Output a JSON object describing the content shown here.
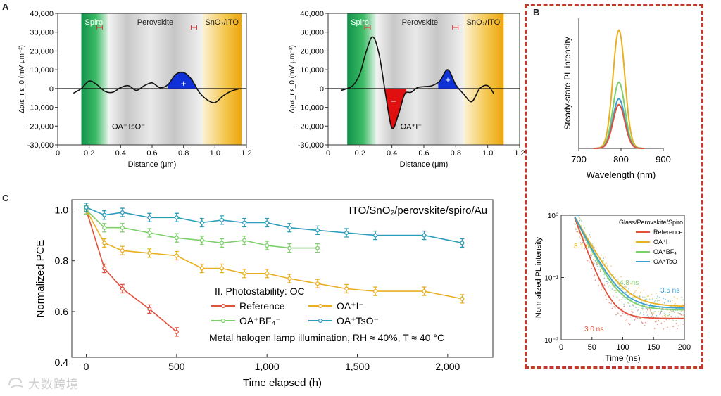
{
  "panel_labels": {
    "a": "A",
    "b": "B",
    "c": "C"
  },
  "watermark": "大数跨境",
  "colors": {
    "accent_border": "#c0392b",
    "spiro_green": "#1aa04a",
    "perovskite_gray": "#cfcfcf",
    "sno2_orange": "#f2b51b",
    "positive_fill": "#1030d8",
    "negative_fill": "#e01010"
  },
  "chart_data": [
    {
      "id": "A1",
      "type": "line",
      "xlabel": "Distance (μm)",
      "ylabel": "Δρ/ε_r ε_0 (mV μm⁻²)",
      "xlim": [
        0,
        1.2
      ],
      "ylim": [
        -30000,
        40000
      ],
      "xticks": [
        "0",
        "0.2",
        "0.4",
        "0.6",
        "0.8",
        "1.0",
        "1.2"
      ],
      "yticks": [
        "-30,000",
        "-20,000",
        "-10,000",
        "0",
        "10,000",
        "20,000",
        "30,000",
        "40,000"
      ],
      "regions": [
        {
          "label": "Spiro",
          "from": 0.15,
          "to": 0.32
        },
        {
          "label": "Perovskite",
          "from": 0.32,
          "to": 0.92
        },
        {
          "label": "SnO₂/ITO",
          "from": 0.92,
          "to": 1.17
        }
      ],
      "annotation": "OA⁺TsO⁻",
      "sign_labels": [
        "+"
      ],
      "x": [
        0.1,
        0.15,
        0.2,
        0.25,
        0.3,
        0.35,
        0.4,
        0.45,
        0.5,
        0.55,
        0.6,
        0.65,
        0.7,
        0.75,
        0.8,
        0.85,
        0.9,
        0.95,
        1.0,
        1.05,
        1.1,
        1.15
      ],
      "y": [
        -2500,
        0,
        4000,
        2000,
        -1500,
        -2000,
        500,
        1500,
        -1000,
        1500,
        3000,
        500,
        2000,
        7500,
        8500,
        5000,
        -2000,
        -6000,
        -7500,
        -4000,
        -1500,
        -200
      ]
    },
    {
      "id": "A2",
      "type": "line",
      "xlabel": "Distance (μm)",
      "ylabel": "Δρ/ε_r ε_0 (mV μm⁻²)",
      "xlim": [
        0,
        1.2
      ],
      "ylim": [
        -30000,
        40000
      ],
      "xticks": [
        "0",
        "0.2",
        "0.4",
        "0.6",
        "0.8",
        "1.0",
        "1.2"
      ],
      "yticks": [
        "-30,000",
        "-20,000",
        "-10,000",
        "0",
        "10,000",
        "20,000",
        "30,000",
        "40,000"
      ],
      "regions": [
        {
          "label": "Spiro",
          "from": 0.12,
          "to": 0.3
        },
        {
          "label": "Perovskite",
          "from": 0.3,
          "to": 0.85
        },
        {
          "label": "SnO₂/ITO",
          "from": 0.85,
          "to": 1.1
        }
      ],
      "annotation": "OA⁺I⁻",
      "sign_labels": [
        "−",
        "+"
      ],
      "x": [
        0.08,
        0.12,
        0.16,
        0.2,
        0.24,
        0.28,
        0.32,
        0.36,
        0.4,
        0.44,
        0.48,
        0.52,
        0.56,
        0.6,
        0.65,
        0.7,
        0.75,
        0.8,
        0.85,
        0.9,
        0.95,
        1.0,
        1.04
      ],
      "y": [
        -1000,
        0,
        2000,
        8000,
        20000,
        27500,
        18000,
        -3000,
        -21000,
        -14000,
        -3000,
        -2000,
        500,
        1000,
        1500,
        4000,
        10000,
        2000,
        -3000,
        -7000,
        0,
        1500,
        -3000
      ]
    },
    {
      "id": "B1",
      "type": "line",
      "xlabel": "Wavelength (nm)",
      "ylabel": "Steady-state PL intensity",
      "xlim": [
        700,
        900
      ],
      "xticks": [
        "700",
        "800",
        "900"
      ],
      "series": [
        {
          "name": "OA⁺I",
          "color": "#e8b020",
          "peak_x": 795,
          "peak": 1.0
        },
        {
          "name": "OA⁺BF₄",
          "color": "#7ccf6a",
          "peak_x": 795,
          "peak": 0.56
        },
        {
          "name": "OA⁺TsO",
          "color": "#3a9fd1",
          "peak_x": 795,
          "peak": 0.42
        },
        {
          "name": "Reference",
          "color": "#e0503a",
          "peak_x": 795,
          "peak": 0.37
        }
      ]
    },
    {
      "id": "B2",
      "type": "line",
      "title": "Glass/Perovskite/Spiro",
      "xlabel": "Time (ns)",
      "ylabel": "Normalized PL intensity",
      "xlim": [
        0,
        200
      ],
      "ylim": [
        0.01,
        1
      ],
      "yscale": "log",
      "xticks": [
        "0",
        "50",
        "100",
        "150",
        "200"
      ],
      "yticks": [
        "10⁻²",
        "10⁻¹",
        "10⁰"
      ],
      "legend_position": "top-right",
      "series": [
        {
          "name": "Reference",
          "color": "#e0503a",
          "lifetime_label": "3.0 ns",
          "tau": 16,
          "floor": 0.022
        },
        {
          "name": "OA⁺I",
          "color": "#e8b020",
          "lifetime_label": "8.1 ns",
          "tau": 24,
          "floor": 0.034
        },
        {
          "name": "OA⁺BF₄",
          "color": "#7ccf6a",
          "lifetime_label": "4.8 ns",
          "tau": 21,
          "floor": 0.03
        },
        {
          "name": "OA⁺TsO",
          "color": "#3a9fd1",
          "lifetime_label": "3.5 ns",
          "tau": 22,
          "floor": 0.032
        }
      ]
    },
    {
      "id": "C",
      "type": "line",
      "xlabel": "Time elapsed (h)",
      "ylabel": "Normalized PCE",
      "xlim": [
        -80,
        2250
      ],
      "ylim": [
        0.42,
        1.04
      ],
      "xticks": [
        "0",
        "500",
        "1,000",
        "1,500",
        "2,000"
      ],
      "yticks": [
        "0.4",
        "0.6",
        "0.8",
        "1.0"
      ],
      "device_label": "ITO/SnO₂/perovskite/spiro/Au",
      "legend_title": "II. Photostability: OC",
      "condition": "Metal halogen lamp illumination, RH ≈ 40%, T ≈ 40 °C",
      "series": [
        {
          "name": "Reference",
          "color": "#e0503a",
          "x": [
            0,
            100,
            200,
            350,
            500
          ],
          "y": [
            1.0,
            0.77,
            0.69,
            0.61,
            0.52
          ]
        },
        {
          "name": "OA⁺I⁻",
          "color": "#e8b020",
          "x": [
            0,
            100,
            200,
            350,
            500,
            640,
            750,
            875,
            1000,
            1125,
            1280,
            1440,
            1600,
            1870,
            2080
          ],
          "y": [
            1.0,
            0.87,
            0.84,
            0.83,
            0.82,
            0.77,
            0.77,
            0.75,
            0.75,
            0.73,
            0.71,
            0.69,
            0.68,
            0.68,
            0.65
          ]
        },
        {
          "name": "OA⁺BF₄⁻",
          "color": "#7ccf6a",
          "x": [
            0,
            100,
            200,
            350,
            500,
            640,
            750,
            875,
            1000,
            1125,
            1280
          ],
          "y": [
            1.0,
            0.93,
            0.93,
            0.91,
            0.89,
            0.88,
            0.87,
            0.88,
            0.86,
            0.85,
            0.85
          ]
        },
        {
          "name": "OA⁺TsO⁻",
          "color": "#2a9db8",
          "x": [
            0,
            100,
            200,
            350,
            500,
            640,
            750,
            875,
            1000,
            1125,
            1280,
            1440,
            1600,
            1870,
            2080
          ],
          "y": [
            1.01,
            0.98,
            0.99,
            0.97,
            0.97,
            0.95,
            0.96,
            0.95,
            0.95,
            0.93,
            0.92,
            0.91,
            0.9,
            0.9,
            0.87
          ]
        }
      ]
    }
  ]
}
